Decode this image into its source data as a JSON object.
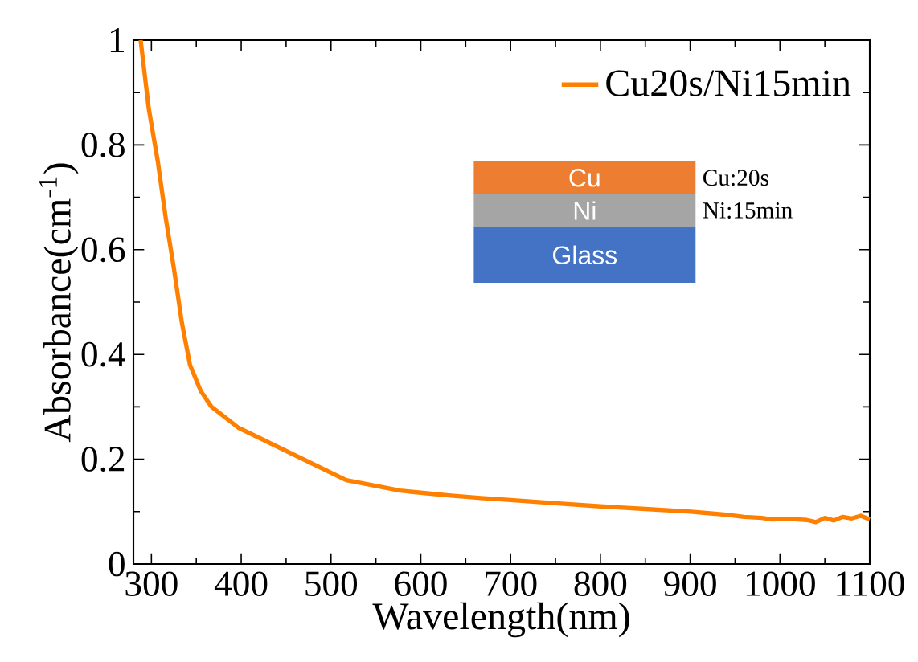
{
  "chart_data": {
    "type": "line",
    "xlabel": "Wavelength(nm)",
    "ylabel": "Absorbance(cm$^{-1}$)",
    "xlim": [
      280,
      1100
    ],
    "xticks": [
      300,
      400,
      500,
      600,
      700,
      800,
      900,
      1000,
      1100
    ],
    "ylim": [
      0,
      1
    ],
    "yticks": [
      0,
      0.2,
      0.4,
      0.6,
      0.8,
      1
    ],
    "legend": "top right",
    "grid": false,
    "marker": "none",
    "line_style": "solid",
    "annotations": [
      "Cu",
      "Ni",
      "Glass",
      "Cu:20s",
      "Ni:15min"
    ],
    "series": [
      {
        "name": "Cu20s/Ni15min",
        "color": "#ff8000",
        "x": [
          288,
          297,
          307,
          316,
          325,
          334,
          343,
          355,
          367,
          382,
          397,
          427,
          457,
          487,
          517,
          547,
          577,
          607,
          631,
          667,
          700,
          750,
          800,
          850,
          901,
          920,
          940,
          960,
          980,
          991,
          1010,
          1030,
          1040,
          1050,
          1060,
          1070,
          1080,
          1090,
          1100
        ],
        "values": [
          1.0,
          0.87,
          0.77,
          0.66,
          0.565,
          0.46,
          0.38,
          0.33,
          0.3,
          0.28,
          0.26,
          0.235,
          0.21,
          0.185,
          0.16,
          0.15,
          0.14,
          0.135,
          0.131,
          0.126,
          0.122,
          0.116,
          0.11,
          0.105,
          0.1,
          0.097,
          0.094,
          0.09,
          0.088,
          0.085,
          0.086,
          0.084,
          0.08,
          0.088,
          0.083,
          0.09,
          0.087,
          0.092,
          0.085
        ]
      }
    ]
  }
}
